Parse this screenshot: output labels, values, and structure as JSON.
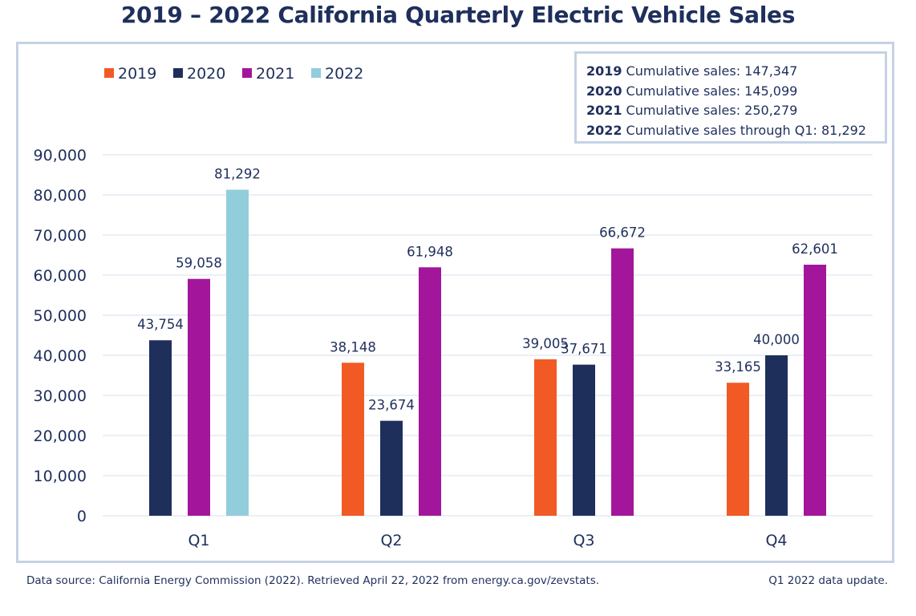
{
  "title": "2019 – 2022 California Quarterly Electric Vehicle Sales",
  "cumulative": [
    {
      "year": "2019",
      "text": "Cumulative sales: 147,347"
    },
    {
      "year": "2020",
      "text": "Cumulative sales: 145,099"
    },
    {
      "year": "2021",
      "text": "Cumulative sales: 250,279"
    },
    {
      "year": "2022",
      "text": "Cumulative sales through Q1: 81,292"
    }
  ],
  "footer": {
    "source": "Data source: California Energy Commission (2022). Retrieved April 22, 2022 from energy.ca.gov/zevstats.",
    "note": "Q1 2022 data update."
  },
  "chart_data": {
    "type": "bar",
    "categories": [
      "Q1",
      "Q2",
      "Q3",
      "Q4"
    ],
    "series": [
      {
        "name": "2019",
        "color": "#f15a24",
        "values": [
          null,
          38148,
          39005,
          33165
        ],
        "labels": [
          "",
          "38,148",
          "39,005",
          "33,165"
        ]
      },
      {
        "name": "2020",
        "color": "#1f2f5c",
        "values": [
          43754,
          23674,
          37671,
          40000
        ],
        "labels": [
          "43,754",
          "23,674",
          "37,671",
          "40,000"
        ]
      },
      {
        "name": "2021",
        "color": "#a3169b",
        "values": [
          59058,
          61948,
          66672,
          62601
        ],
        "labels": [
          "59,058",
          "61,948",
          "66,672",
          "62,601"
        ]
      },
      {
        "name": "2022",
        "color": "#92cddb",
        "values": [
          81292,
          null,
          null,
          null
        ],
        "labels": [
          "81,292",
          "",
          "",
          ""
        ]
      }
    ],
    "yticks": [
      "0",
      "10,000",
      "20,000",
      "30,000",
      "40,000",
      "50,000",
      "60,000",
      "70,000",
      "80,000",
      "90,000"
    ],
    "ylim": [
      0,
      90000
    ],
    "grid": true,
    "legend": "top-left"
  }
}
